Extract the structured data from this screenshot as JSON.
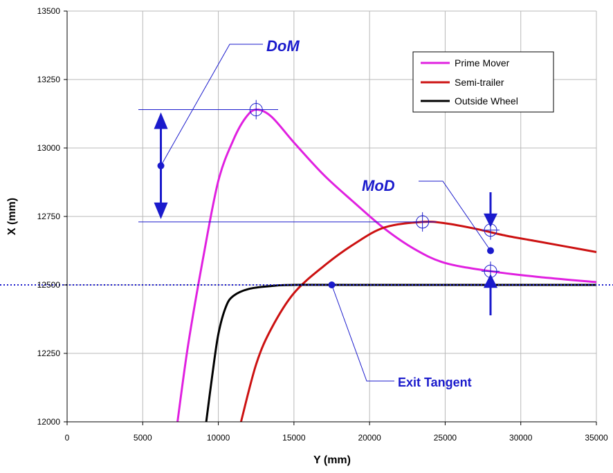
{
  "chart_data": {
    "type": "line",
    "xlabel": "Y (mm)",
    "ylabel": "X (mm)",
    "xlim": [
      0,
      35000
    ],
    "ylim": [
      12000,
      13500
    ],
    "xticks": [
      "0",
      "5000",
      "10000",
      "15000",
      "20000",
      "25000",
      "30000",
      "35000"
    ],
    "yticks": [
      "12000",
      "12250",
      "12500",
      "12750",
      "13000",
      "13250",
      "13500"
    ],
    "grid": true,
    "legend_position": "top-right",
    "series": [
      {
        "name": "Prime Mover",
        "color": "#e020e0",
        "points": [
          [
            7300,
            12000
          ],
          [
            8000,
            12280
          ],
          [
            9000,
            12600
          ],
          [
            10000,
            12880
          ],
          [
            11000,
            13030
          ],
          [
            11800,
            13110
          ],
          [
            12500,
            13140
          ],
          [
            13500,
            13115
          ],
          [
            15000,
            13020
          ],
          [
            17000,
            12900
          ],
          [
            19000,
            12800
          ],
          [
            21000,
            12705
          ],
          [
            23000,
            12630
          ],
          [
            25000,
            12580
          ],
          [
            28000,
            12550
          ],
          [
            31000,
            12530
          ],
          [
            35000,
            12510
          ]
        ]
      },
      {
        "name": "Semi-trailer",
        "color": "#cc1111",
        "points": [
          [
            11500,
            12000
          ],
          [
            12500,
            12210
          ],
          [
            13500,
            12340
          ],
          [
            15000,
            12470
          ],
          [
            17000,
            12570
          ],
          [
            19000,
            12650
          ],
          [
            21000,
            12710
          ],
          [
            23500,
            12730
          ],
          [
            25000,
            12725
          ],
          [
            27000,
            12705
          ],
          [
            29000,
            12680
          ],
          [
            31000,
            12660
          ],
          [
            33000,
            12640
          ],
          [
            35000,
            12620
          ]
        ]
      },
      {
        "name": "Outside Wheel",
        "color": "#000000",
        "points": [
          [
            9200,
            12000
          ],
          [
            9600,
            12170
          ],
          [
            10000,
            12320
          ],
          [
            10500,
            12420
          ],
          [
            11000,
            12460
          ],
          [
            12000,
            12485
          ],
          [
            13500,
            12496
          ],
          [
            15000,
            12500
          ],
          [
            20000,
            12500
          ],
          [
            35000,
            12500
          ]
        ]
      }
    ],
    "annotations": {
      "dom_label": "DoM",
      "mod_label": "MoD",
      "exit_label": "Exit Tangent",
      "exit_tangent_value": 12500,
      "dom_upper": 13140,
      "dom_lower": 12730,
      "dom_arrow_x": 6200,
      "prime_mover_peak": [
        12500,
        13140
      ],
      "semi_trailer_peak": [
        23500,
        12730
      ],
      "mod_x": 28000,
      "mod_prime_mover_y": 12550,
      "mod_semi_trailer_y": 12700,
      "mod_dot_y": 12625,
      "exit_dot": [
        17500,
        12500
      ]
    },
    "colors": {
      "annotation": "#1a1acc",
      "grid": "#b8b8b8"
    }
  }
}
